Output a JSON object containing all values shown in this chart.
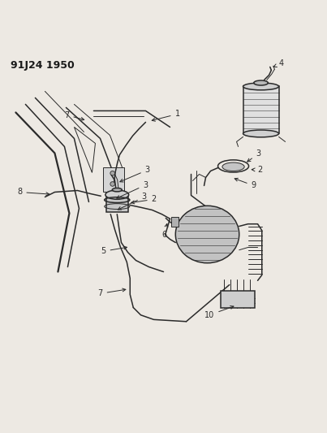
{
  "title": "91J24 1950",
  "bg_color": "#ede9e3",
  "line_color": "#2a2a2a",
  "label_color": "#1a1a1a",
  "figsize": [
    4.03,
    5.33
  ],
  "dpi": 100
}
